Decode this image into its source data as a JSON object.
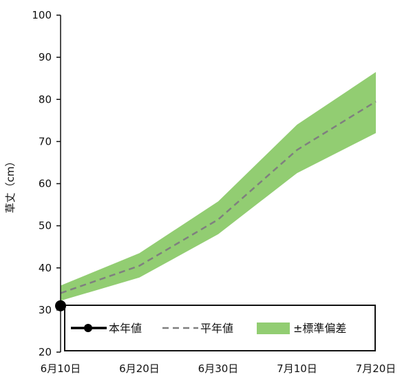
{
  "chart_data": {
    "type": "line",
    "ylabel": "草丈（cm）",
    "ylim": [
      20,
      100
    ],
    "yticks": [
      20,
      30,
      40,
      50,
      60,
      70,
      80,
      90,
      100
    ],
    "categories": [
      "6月10日",
      "6月20日",
      "6月30日",
      "7月10日",
      "7月20日"
    ],
    "series": [
      {
        "name": "本年値",
        "values": [
          31,
          null,
          null,
          null,
          null
        ],
        "style": "solid-marker",
        "color": "#000000"
      },
      {
        "name": "平年値",
        "values": [
          34,
          40.5,
          51.5,
          68,
          79.5
        ],
        "style": "dashed",
        "color": "#7f7f7f"
      }
    ],
    "band": {
      "name": "±標準偏差",
      "upper": [
        35.8,
        43.5,
        55.8,
        74,
        86.5
      ],
      "lower": [
        32.2,
        37.7,
        48,
        62.5,
        72
      ],
      "color": "#92cd72"
    },
    "legend_placement": "bottom-inside"
  }
}
